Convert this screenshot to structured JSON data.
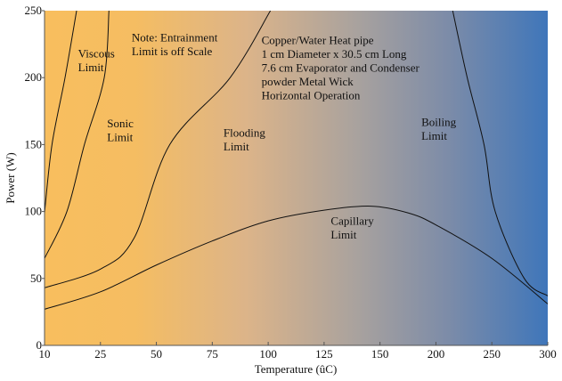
{
  "chart_data": {
    "type": "line",
    "title": "",
    "xlabel": "Temperature (ûC)",
    "ylabel": "Power (W)",
    "x_ticks": [
      10,
      25,
      50,
      75,
      100,
      125,
      150,
      200,
      250,
      300
    ],
    "y_ticks": [
      0,
      50,
      100,
      150,
      200,
      250
    ],
    "xlim": [
      10,
      300
    ],
    "ylim": [
      0,
      250
    ],
    "grid": false,
    "background_gradient": [
      "#f8be5e",
      "#f5bd62",
      "#dcb489",
      "#a9a29e",
      "#7d8ca8",
      "#3f76ba"
    ],
    "line_color": "#111111",
    "series": [
      {
        "name": "Viscous Limit",
        "x": [
          10,
          12,
          15.5,
          18.6
        ],
        "y": [
          99,
          150,
          200,
          250
        ]
      },
      {
        "name": "Sonic Limit",
        "x": [
          10,
          16,
          20.7,
          26.7,
          28.8
        ],
        "y": [
          65,
          100,
          150,
          200,
          250
        ]
      },
      {
        "name": "Flooding Limit",
        "x": [
          10,
          25,
          40,
          56,
          83,
          101
        ],
        "y": [
          43,
          57,
          80,
          150,
          200,
          250
        ]
      },
      {
        "name": "Capillary Limit",
        "x": [
          10,
          25,
          50,
          75,
          100,
          125,
          146,
          175,
          200,
          250,
          300
        ],
        "y": [
          27,
          40,
          60,
          78,
          93,
          101,
          104,
          99,
          90,
          65,
          31
        ]
      },
      {
        "name": "Boiling Limit",
        "x": [
          215,
          228,
          243,
          253,
          279,
          300
        ],
        "y": [
          250,
          200,
          150,
          100,
          50,
          37
        ]
      }
    ],
    "annotations": [
      {
        "lines": [
          "Viscous",
          "Limit"
        ],
        "x": 19,
        "y": 215
      },
      {
        "lines": [
          "Sonic",
          "Limit"
        ],
        "x": 28,
        "y": 163
      },
      {
        "lines": [
          "Note: Entrainment",
          "Limit is off Scale"
        ],
        "x": 39,
        "y": 227
      },
      {
        "lines": [
          "Copper/Water Heat pipe",
          "1 cm Diameter x 30.5 cm Long",
          "7.6 cm Evaporator and Condenser",
          "powder Metal Wick",
          "Horizontal Operation"
        ],
        "x": 97,
        "y": 225
      },
      {
        "lines": [
          "Flooding",
          "Limit"
        ],
        "x": 80,
        "y": 156
      },
      {
        "lines": [
          "Capillary",
          "Limit"
        ],
        "x": 128,
        "y": 90
      },
      {
        "lines": [
          "Boiling",
          "Limit"
        ],
        "x": 187,
        "y": 164
      }
    ]
  }
}
